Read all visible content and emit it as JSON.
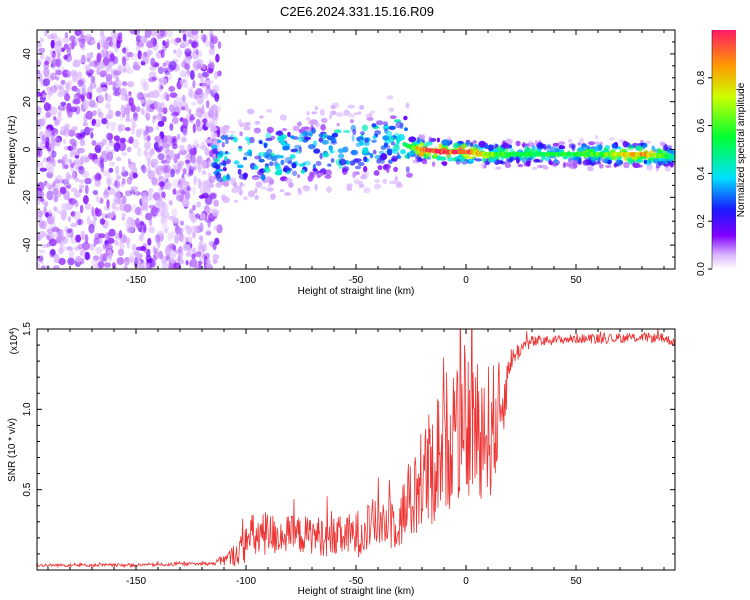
{
  "title": "C2E6.2024.331.15.16.R09",
  "chart_data": [
    {
      "type": "heatmap",
      "title": "C2E6.2024.331.15.16.R09",
      "xlabel": "Height of straight line (km)",
      "ylabel": "Frequency (Hz)",
      "xlim": [
        -195,
        95
      ],
      "ylim": [
        -50,
        50
      ],
      "xticks": [
        -150,
        -100,
        -50,
        0,
        50
      ],
      "xtick_labels": [
        "-150",
        "-100",
        "-50",
        "0",
        "50"
      ],
      "yticks": [
        -40,
        -20,
        0,
        20,
        40
      ],
      "ytick_labels": [
        "-40",
        "-20",
        "0",
        "20",
        "40"
      ],
      "noise_region_x": [
        -195,
        -112
      ],
      "signal_ridge": {
        "x": [
          -112,
          -100,
          -80,
          -60,
          -40,
          -30,
          -25,
          -20,
          -10,
          0,
          10,
          20,
          40,
          60,
          80,
          95
        ],
        "freq_hz": [
          -4,
          -3,
          -2,
          0,
          2,
          3,
          1,
          0,
          -1,
          -1,
          -2,
          -2,
          -2,
          -2,
          -2,
          -3
        ],
        "amplitude": [
          0.15,
          0.25,
          0.3,
          0.32,
          0.35,
          0.4,
          0.6,
          0.9,
          0.95,
          0.95,
          0.7,
          0.55,
          0.55,
          0.6,
          0.9,
          0.45
        ]
      },
      "colorbar": {
        "label": "Normalized spectral amplitude",
        "range": [
          0,
          1
        ],
        "ticks": [
          0,
          0.2,
          0.4,
          0.6,
          0.8
        ],
        "tick_labels": [
          "0.0",
          "0.2",
          "0.4",
          "0.6",
          "0.8"
        ]
      }
    },
    {
      "type": "line",
      "xlabel": "Height of straight line (km)",
      "ylabel": "SNR (10 * v/v)",
      "y_multiplier": "(x10",
      "y_multiplier_exp": "4",
      "y_multiplier_close": ")",
      "xlim": [
        -195,
        95
      ],
      "ylim": [
        0,
        1.5
      ],
      "xticks": [
        -150,
        -100,
        -50,
        0,
        50
      ],
      "xtick_labels": [
        "-150",
        "-100",
        "-50",
        "0",
        "50"
      ],
      "yticks": [
        0.5,
        1.0,
        1.5
      ],
      "ytick_labels": [
        "0.5",
        "1.0",
        "1.5"
      ],
      "series": [
        {
          "name": "SNR",
          "color": "#ee3333",
          "x": [
            -195,
            -150,
            -115,
            -108,
            -102,
            -98,
            -90,
            -80,
            -70,
            -60,
            -55,
            -50,
            -45,
            -40,
            -35,
            -30,
            -25,
            -20,
            -15,
            -10,
            -5,
            0,
            5,
            10,
            15,
            18,
            20,
            25,
            30,
            40,
            50,
            60,
            70,
            80,
            90,
            95
          ],
          "y": [
            0.03,
            0.03,
            0.04,
            0.07,
            0.13,
            0.2,
            0.22,
            0.22,
            0.22,
            0.2,
            0.21,
            0.22,
            0.26,
            0.3,
            0.3,
            0.33,
            0.42,
            0.55,
            0.65,
            0.8,
            0.85,
            0.88,
            0.9,
            0.85,
            0.95,
            1.12,
            1.3,
            1.38,
            1.42,
            1.43,
            1.44,
            1.44,
            1.44,
            1.45,
            1.44,
            1.42
          ],
          "noise_amplitude": [
            0.01,
            0.01,
            0.01,
            0.05,
            0.1,
            0.15,
            0.14,
            0.12,
            0.12,
            0.13,
            0.13,
            0.15,
            0.16,
            0.17,
            0.18,
            0.2,
            0.25,
            0.35,
            0.4,
            0.45,
            0.45,
            0.45,
            0.45,
            0.45,
            0.35,
            0.18,
            0.08,
            0.05,
            0.04,
            0.03,
            0.03,
            0.03,
            0.03,
            0.03,
            0.03,
            0.03
          ]
        }
      ]
    }
  ]
}
